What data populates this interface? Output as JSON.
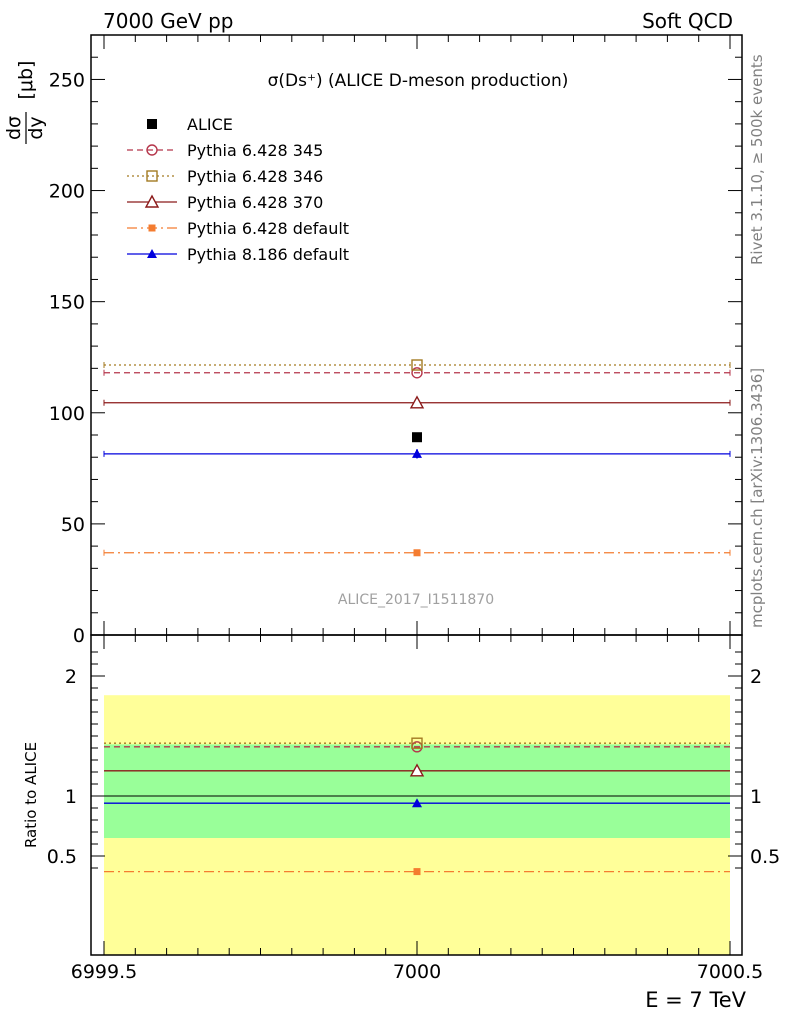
{
  "header": {
    "left": "7000 GeV pp",
    "right": "Soft QCD"
  },
  "side_text": {
    "rivet": "Rivet 3.1.10, ≥ 500k events",
    "mcplots": "mcplots.cern.ch [arXiv:1306.3436]"
  },
  "plot_title": "σ(Ds⁺) (ALICE D-meson production)",
  "analysis_id": "ALICE_2017_I1511870",
  "y_axis_top": {
    "numerator": "dσ",
    "denominator": "dy",
    "unit": "[μb]"
  },
  "y_axis_bottom": "Ratio to ALICE",
  "x_axis_label": "E = 7 TeV",
  "legend": [
    {
      "label": "ALICE",
      "color": "#000000",
      "marker": "square-filled",
      "line": "none"
    },
    {
      "label": "Pythia 6.428 345",
      "color": "#b5364b",
      "marker": "circle-open",
      "line": "dashed"
    },
    {
      "label": "Pythia 6.428 346",
      "color": "#a37a22",
      "marker": "square-open",
      "line": "dotted"
    },
    {
      "label": "Pythia 6.428 370",
      "color": "#8b1a1a",
      "marker": "triangle-open",
      "line": "solid"
    },
    {
      "label": "Pythia 6.428 default",
      "color": "#f47c30",
      "marker": "square-filled",
      "line": "dashdot"
    },
    {
      "label": "Pythia 8.186 default",
      "color": "#0000dd",
      "marker": "triangle-filled",
      "line": "solid"
    }
  ],
  "chart_data": [
    {
      "type": "scatter",
      "panel": "main",
      "x_range": [
        6999.5,
        7000.5
      ],
      "ylim": [
        0,
        270
      ],
      "x_ticks": [
        "6999.5",
        "7000",
        "7000.5"
      ],
      "y_ticks": [
        0,
        50,
        100,
        150,
        200,
        250
      ],
      "series": [
        {
          "name": "ALICE",
          "x": 7000,
          "y": 89,
          "err": 0
        },
        {
          "name": "Pythia 6.428 345",
          "x": 7000,
          "y": 118
        },
        {
          "name": "Pythia 6.428 346",
          "x": 7000,
          "y": 121.5
        },
        {
          "name": "Pythia 6.428 370",
          "x": 7000,
          "y": 104.5
        },
        {
          "name": "Pythia 6.428 default",
          "x": 7000,
          "y": 37
        },
        {
          "name": "Pythia 8.186 default",
          "x": 7000,
          "y": 81.5,
          "err": 2
        }
      ]
    },
    {
      "type": "scatter",
      "panel": "ratio",
      "x_range": [
        6999.5,
        7000.5
      ],
      "ylim": [
        0.35,
        2.25
      ],
      "y_ticks": [
        0.5,
        1,
        2
      ],
      "bands": [
        {
          "kind": "yellow",
          "low": 0.65,
          "high": 1.84,
          "color": "#ffff99"
        },
        {
          "kind": "green",
          "low": 0.65,
          "high": 1.43,
          "color": "#99ff99"
        }
      ],
      "series": [
        {
          "name": "Pythia 6.428 345",
          "x": 7000,
          "y": 1.41
        },
        {
          "name": "Pythia 6.428 346",
          "x": 7000,
          "y": 1.44
        },
        {
          "name": "Pythia 6.428 370",
          "x": 7000,
          "y": 1.21
        },
        {
          "name": "Pythia 6.428 default",
          "x": 7000,
          "y": 0.37
        },
        {
          "name": "Pythia 8.186 default",
          "x": 7000,
          "y": 0.94,
          "err": 0.02
        }
      ]
    }
  ]
}
